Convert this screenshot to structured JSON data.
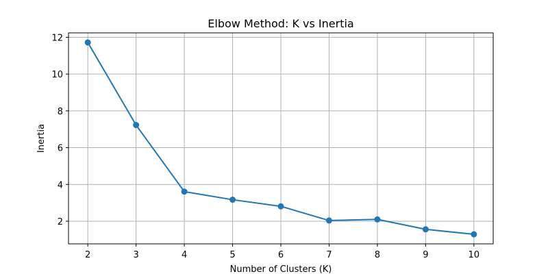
{
  "chart_data": {
    "type": "line",
    "title": "Elbow Method: K vs Inertia",
    "xlabel": "Number of Clusters (K)",
    "ylabel": "Inertia",
    "x": [
      2,
      3,
      4,
      5,
      6,
      7,
      8,
      9,
      10
    ],
    "series": [
      {
        "values": [
          11.72,
          7.23,
          3.61,
          3.17,
          2.81,
          2.04,
          2.1,
          1.56,
          1.29
        ],
        "color": "#1f77b4",
        "marker": "circle"
      }
    ],
    "xticks": [
      "2",
      "3",
      "4",
      "5",
      "6",
      "7",
      "8",
      "9",
      "10"
    ],
    "yticks": [
      "2",
      "4",
      "6",
      "8",
      "10",
      "12"
    ],
    "xlim": [
      1.6,
      10.4
    ],
    "ylim": [
      0.77,
      12.24
    ],
    "grid": true,
    "legend": "none"
  }
}
